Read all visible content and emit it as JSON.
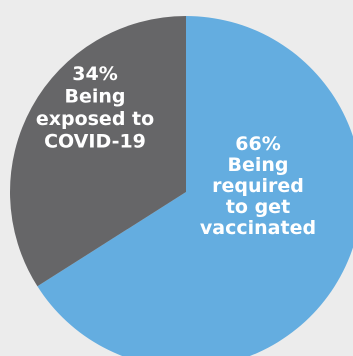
{
  "chart_data": {
    "type": "pie",
    "title": "",
    "slices": [
      {
        "label": "Being required to get vaccinated",
        "value": 66,
        "percent_text": "66%",
        "label_lines": [
          "Being",
          "required",
          "to get",
          "vaccinated"
        ],
        "color": "#64ade0"
      },
      {
        "label": "Being exposed to COVID-19",
        "value": 34,
        "percent_text": "34%",
        "label_lines": [
          "Being",
          "exposed to",
          "COVID-19"
        ],
        "color": "#666668"
      }
    ],
    "start_angle_deg": 0,
    "direction": "clockwise",
    "legend": "none",
    "background": "#ececec"
  }
}
